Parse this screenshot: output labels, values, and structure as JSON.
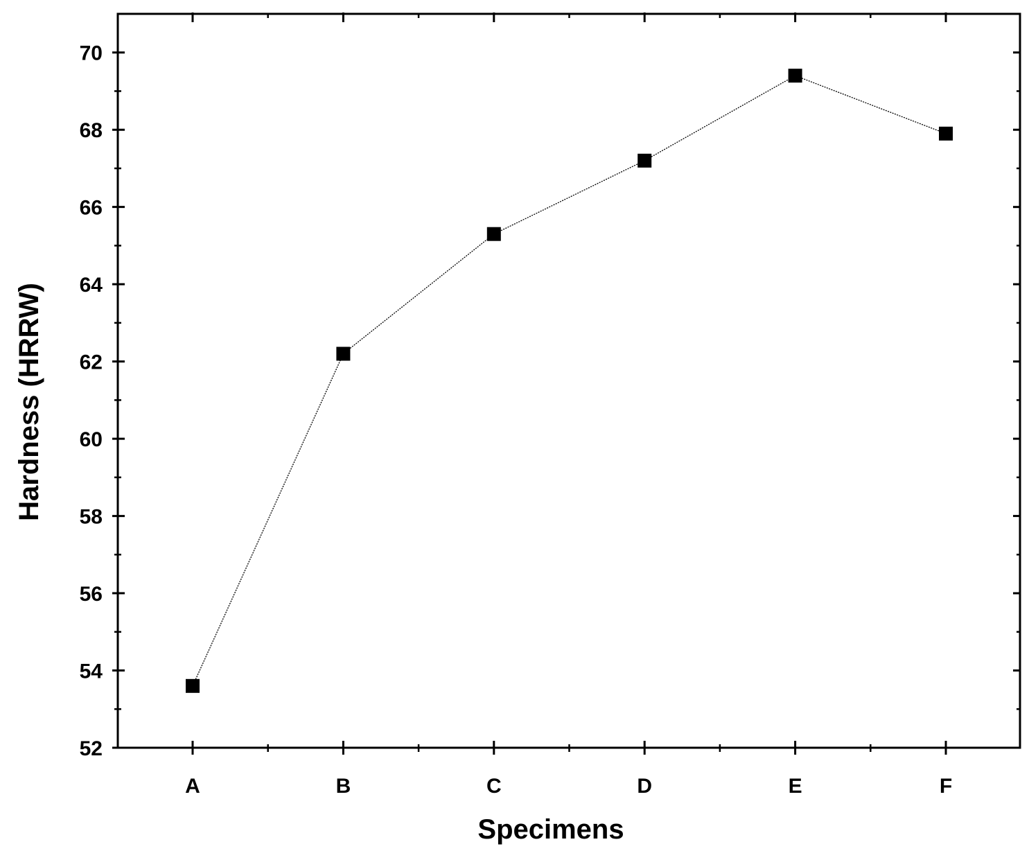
{
  "chart_data": {
    "type": "line",
    "categories": [
      "A",
      "B",
      "C",
      "D",
      "E",
      "F"
    ],
    "series": [
      {
        "values": [
          53.6,
          62.2,
          65.3,
          67.2,
          69.4,
          67.9
        ]
      }
    ],
    "xlabel": "Specimens",
    "ylabel": "Hardness (HRRW)",
    "ylim": [
      52,
      71
    ],
    "yticks": [
      52,
      54,
      56,
      58,
      60,
      62,
      64,
      66,
      68,
      70
    ],
    "grid": false,
    "marker": "square",
    "colors": {
      "line": "#000000",
      "marker": "#000000",
      "axis": "#000000"
    }
  }
}
